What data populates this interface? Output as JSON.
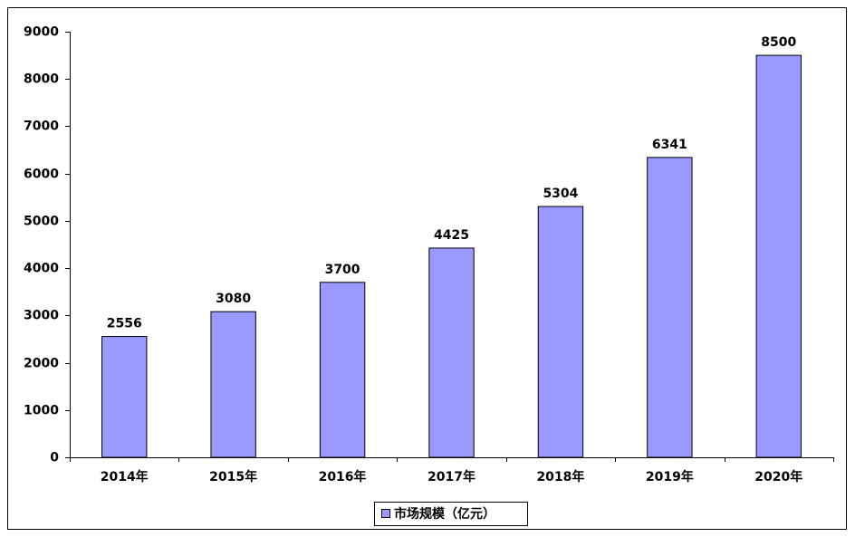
{
  "chart_data": {
    "type": "bar",
    "categories": [
      "2014年",
      "2015年",
      "2016年",
      "2017年",
      "2018年",
      "2019年",
      "2020年"
    ],
    "series": [
      {
        "name": "市场规模（亿元）",
        "color": "#9999ff",
        "values": [
          2556,
          3080,
          3700,
          4425,
          5304,
          6341,
          8500
        ]
      }
    ],
    "ylim": [
      0,
      9000
    ],
    "yticks": [
      0,
      1000,
      2000,
      3000,
      4000,
      5000,
      6000,
      7000,
      8000,
      9000
    ],
    "grid": false,
    "legend": "bottom"
  }
}
